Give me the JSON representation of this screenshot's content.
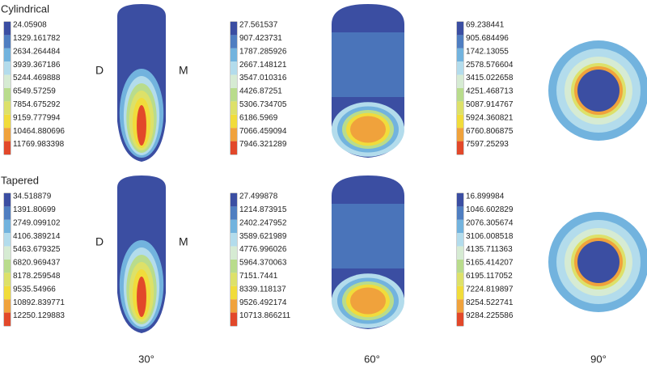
{
  "scale_colors": [
    "#3b4ea2",
    "#4f7ec1",
    "#72b3de",
    "#b3dcec",
    "#d6ebd3",
    "#b9dc8c",
    "#dde169",
    "#f1dc3b",
    "#f0a23c",
    "#e2482a"
  ],
  "columns": [
    "30°",
    "60°",
    "90°"
  ],
  "rows": [
    {
      "label": "Cylindrical",
      "side_labels": [
        "D",
        "M"
      ],
      "legends": [
        [
          "24.05908",
          "1329.161782",
          "2634.264484",
          "3939.367186",
          "5244.469888",
          "6549.57259",
          "7854.675292",
          "9159.777994",
          "10464.880696",
          "11769.983398"
        ],
        [
          "27.561537",
          "907.423731",
          "1787.285926",
          "2667.148121",
          "3547.010316",
          "4426.87251",
          "5306.734705",
          "6186.5969",
          "7066.459094",
          "7946.321289"
        ],
        [
          "69.238441",
          "905.684496",
          "1742.13055",
          "2578.576604",
          "3415.022658",
          "4251.468713",
          "5087.914767",
          "5924.360821",
          "6760.806875",
          "7597.25293"
        ]
      ]
    },
    {
      "label": "Tapered",
      "side_labels": [
        "D",
        "M"
      ],
      "legends": [
        [
          "34.518879",
          "1391.80699",
          "2749.099102",
          "4106.389214",
          "5463.679325",
          "6820.969437",
          "8178.259548",
          "9535.54966",
          "10892.839771",
          "12250.129883"
        ],
        [
          "27.499878",
          "1214.873915",
          "2402.247952",
          "3589.621989",
          "4776.996026",
          "5964.370063",
          "7151.7441",
          "8339.118137",
          "9526.492174",
          "10713.866211"
        ],
        [
          "16.899984",
          "1046.602829",
          "2076.305674",
          "3106.008518",
          "4135.711363",
          "5165.414207",
          "6195.117052",
          "7224.819897",
          "8254.522741",
          "9284.225586"
        ]
      ]
    }
  ]
}
